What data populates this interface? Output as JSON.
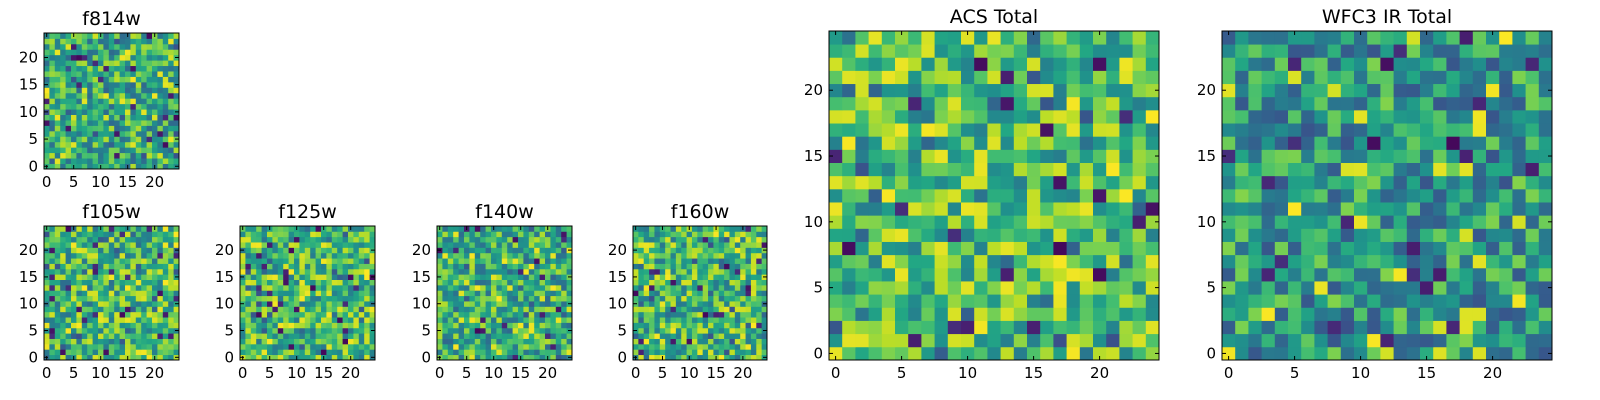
{
  "figure": {
    "description_colormap": "viridis",
    "colors": {
      "low": "#440154",
      "mid": "#21918c",
      "high": "#fde725"
    }
  },
  "chart_data": [
    {
      "type": "heatmap",
      "title": "f814w",
      "xlim": [
        -0.5,
        24.5
      ],
      "ylim": [
        -0.5,
        24.5
      ],
      "xticks": [
        0,
        5,
        10,
        15,
        20
      ],
      "yticks": [
        0,
        5,
        10,
        15,
        20
      ],
      "xtick_labels": [
        "0",
        "5",
        "10",
        "15",
        "20"
      ],
      "ytick_labels": [
        "0",
        "5",
        "10",
        "15",
        "20"
      ],
      "grid_size": [
        25,
        25
      ],
      "colormap": "viridis",
      "seed": 11,
      "bias": 0.0
    },
    {
      "type": "heatmap",
      "title": "f105w",
      "xlim": [
        -0.5,
        24.5
      ],
      "ylim": [
        -0.5,
        24.5
      ],
      "xticks": [
        0,
        5,
        10,
        15,
        20
      ],
      "yticks": [
        0,
        5,
        10,
        15,
        20
      ],
      "xtick_labels": [
        "0",
        "5",
        "10",
        "15",
        "20"
      ],
      "ytick_labels": [
        "0",
        "5",
        "10",
        "15",
        "20"
      ],
      "grid_size": [
        25,
        25
      ],
      "colormap": "viridis",
      "seed": 23,
      "bias": 0.05
    },
    {
      "type": "heatmap",
      "title": "f125w",
      "xlim": [
        -0.5,
        24.5
      ],
      "ylim": [
        -0.5,
        24.5
      ],
      "xticks": [
        0,
        5,
        10,
        15,
        20
      ],
      "yticks": [
        0,
        5,
        10,
        15,
        20
      ],
      "xtick_labels": [
        "0",
        "5",
        "10",
        "15",
        "20"
      ],
      "ytick_labels": [
        "0",
        "5",
        "10",
        "15",
        "20"
      ],
      "grid_size": [
        25,
        25
      ],
      "colormap": "viridis",
      "seed": 37,
      "bias": 0.05
    },
    {
      "type": "heatmap",
      "title": "f140w",
      "xlim": [
        -0.5,
        24.5
      ],
      "ylim": [
        -0.5,
        24.5
      ],
      "xticks": [
        0,
        5,
        10,
        15,
        20
      ],
      "yticks": [
        0,
        5,
        10,
        15,
        20
      ],
      "xtick_labels": [
        "0",
        "5",
        "10",
        "15",
        "20"
      ],
      "ytick_labels": [
        "0",
        "5",
        "10",
        "15",
        "20"
      ],
      "grid_size": [
        25,
        25
      ],
      "colormap": "viridis",
      "seed": 41,
      "bias": 0.0
    },
    {
      "type": "heatmap",
      "title": "f160w",
      "xlim": [
        -0.5,
        24.5
      ],
      "ylim": [
        -0.5,
        24.5
      ],
      "xticks": [
        0,
        5,
        10,
        15,
        20
      ],
      "yticks": [
        0,
        5,
        10,
        15,
        20
      ],
      "xtick_labels": [
        "0",
        "5",
        "10",
        "15",
        "20"
      ],
      "ytick_labels": [
        "0",
        "5",
        "10",
        "15",
        "20"
      ],
      "grid_size": [
        25,
        25
      ],
      "colormap": "viridis",
      "seed": 53,
      "bias": 0.05
    },
    {
      "type": "heatmap",
      "title": "ACS Total",
      "xlim": [
        -0.5,
        24.5
      ],
      "ylim": [
        -0.5,
        24.5
      ],
      "xticks": [
        0,
        5,
        10,
        15,
        20
      ],
      "yticks": [
        0,
        5,
        10,
        15,
        20
      ],
      "xtick_labels": [
        "0",
        "5",
        "10",
        "15",
        "20"
      ],
      "ytick_labels": [
        "0",
        "5",
        "10",
        "15",
        "20"
      ],
      "grid_size": [
        25,
        25
      ],
      "colormap": "viridis",
      "seed": 67,
      "bias": 0.08
    },
    {
      "type": "heatmap",
      "title": "WFC3 IR Total",
      "xlim": [
        -0.5,
        24.5
      ],
      "ylim": [
        -0.5,
        24.5
      ],
      "xticks": [
        0,
        5,
        10,
        15,
        20
      ],
      "yticks": [
        0,
        5,
        10,
        15,
        20
      ],
      "xtick_labels": [
        "0",
        "5",
        "10",
        "15",
        "20"
      ],
      "ytick_labels": [
        "0",
        "5",
        "10",
        "15",
        "20"
      ],
      "grid_size": [
        25,
        25
      ],
      "colormap": "viridis",
      "seed": 79,
      "bias": -0.08
    }
  ]
}
